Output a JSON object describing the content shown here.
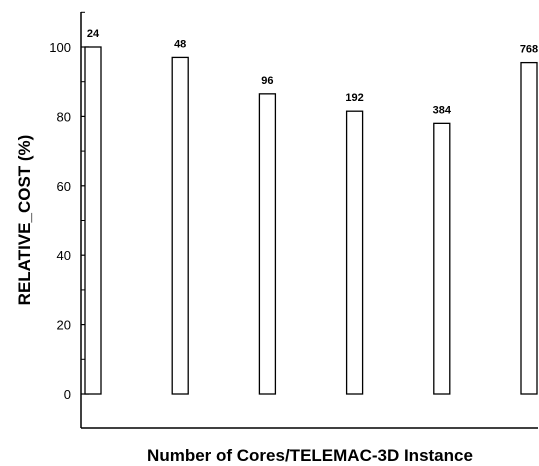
{
  "chart_data": {
    "type": "bar",
    "title": "",
    "xlabel": "Number of Cores/TELEMAC-3D Instance",
    "ylabel": "RELATIVE_COST (%)",
    "categories": [
      "24",
      "48",
      "96",
      "192",
      "384",
      "768"
    ],
    "values": [
      100,
      97,
      86.5,
      81.5,
      78,
      95.5
    ],
    "data_labels": [
      "24",
      "48",
      "96",
      "192",
      "384",
      "768"
    ],
    "yticks": [
      0,
      20,
      40,
      60,
      80,
      100
    ],
    "yticks_labels": [
      "0",
      "20",
      "40",
      "60",
      "80",
      "100"
    ],
    "ylim": [
      -10,
      110
    ],
    "grid": false,
    "bar_fill": "#ffffff",
    "bar_stroke": "#000000"
  }
}
